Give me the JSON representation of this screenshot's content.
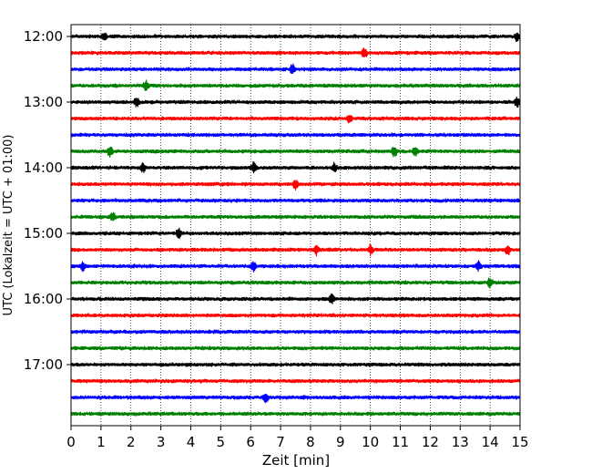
{
  "chart_data": {
    "type": "line",
    "title": "",
    "xlabel": "Zeit  [min]",
    "ylabel": "UTC (Lokalzeit = UTC + 01:00)",
    "xlim": [
      0,
      15
    ],
    "x_ticks": [
      "0",
      "1",
      "2",
      "3",
      "4",
      "5",
      "6",
      "7",
      "8",
      "9",
      "10",
      "11",
      "12",
      "13",
      "14",
      "15"
    ],
    "y_tick_labels": [
      "12:00",
      "13:00",
      "14:00",
      "15:00",
      "16:00",
      "17:00"
    ],
    "grid": "vertical dotted",
    "legend": "none",
    "trace_interval_minutes": 15,
    "first_trace": "12:00",
    "trace_count": 24,
    "colors": [
      "#000000",
      "#ff0000",
      "#0000ff",
      "#008000"
    ],
    "series": [
      {
        "start": "12:00",
        "color": "#000000",
        "events_min": [
          1.1,
          14.9
        ]
      },
      {
        "start": "12:15",
        "color": "#ff0000",
        "events_min": [
          9.8
        ]
      },
      {
        "start": "12:30",
        "color": "#0000ff",
        "events_min": [
          7.4
        ]
      },
      {
        "start": "12:45",
        "color": "#008000",
        "events_min": [
          2.5
        ]
      },
      {
        "start": "13:00",
        "color": "#000000",
        "events_min": [
          2.2,
          14.9
        ]
      },
      {
        "start": "13:15",
        "color": "#ff0000",
        "events_min": [
          9.3
        ]
      },
      {
        "start": "13:30",
        "color": "#0000ff",
        "events_min": []
      },
      {
        "start": "13:45",
        "color": "#008000",
        "events_min": [
          1.3,
          10.8,
          11.5
        ]
      },
      {
        "start": "14:00",
        "color": "#000000",
        "events_min": [
          2.4,
          6.1,
          8.8
        ]
      },
      {
        "start": "14:15",
        "color": "#ff0000",
        "events_min": [
          7.5
        ]
      },
      {
        "start": "14:30",
        "color": "#0000ff",
        "events_min": []
      },
      {
        "start": "14:45",
        "color": "#008000",
        "events_min": [
          1.4
        ]
      },
      {
        "start": "15:00",
        "color": "#000000",
        "events_min": [
          3.6
        ]
      },
      {
        "start": "15:15",
        "color": "#ff0000",
        "events_min": [
          8.2,
          10.0,
          14.6
        ]
      },
      {
        "start": "15:30",
        "color": "#0000ff",
        "events_min": [
          0.4,
          6.1,
          13.6
        ]
      },
      {
        "start": "15:45",
        "color": "#008000",
        "events_min": [
          14.0
        ]
      },
      {
        "start": "16:00",
        "color": "#000000",
        "events_min": [
          8.7
        ]
      },
      {
        "start": "16:15",
        "color": "#ff0000",
        "events_min": []
      },
      {
        "start": "16:30",
        "color": "#0000ff",
        "events_min": []
      },
      {
        "start": "16:45",
        "color": "#008000",
        "events_min": []
      },
      {
        "start": "17:00",
        "color": "#000000",
        "events_min": []
      },
      {
        "start": "17:15",
        "color": "#ff0000",
        "events_min": []
      },
      {
        "start": "17:30",
        "color": "#0000ff",
        "events_min": [
          6.5
        ]
      },
      {
        "start": "17:45",
        "color": "#008000",
        "events_min": []
      }
    ]
  }
}
